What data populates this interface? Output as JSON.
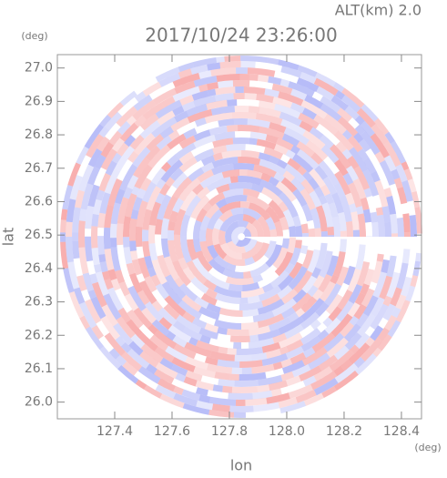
{
  "chart_data": {
    "type": "radar-ppi",
    "title": "2017/10/24 23:26:00",
    "subtitle": "ALT(km) 2.0",
    "x_label": "lon",
    "y_label": "lat",
    "x_unit": "(deg)",
    "y_unit": "(deg)",
    "xlim": [
      127.2,
      128.47
    ],
    "ylim": [
      25.95,
      27.04
    ],
    "xticks": [
      127.4,
      127.6,
      127.8,
      {
        "value": 128,
        "label": "128.0"
      },
      128.2,
      128.4
    ],
    "yticks": [
      {
        "value": 26,
        "label": "26.0"
      },
      26.1,
      26.2,
      26.3,
      26.4,
      26.5,
      26.6,
      26.7,
      26.8,
      26.9,
      {
        "value": 27,
        "label": "27.0"
      }
    ]
  }
}
